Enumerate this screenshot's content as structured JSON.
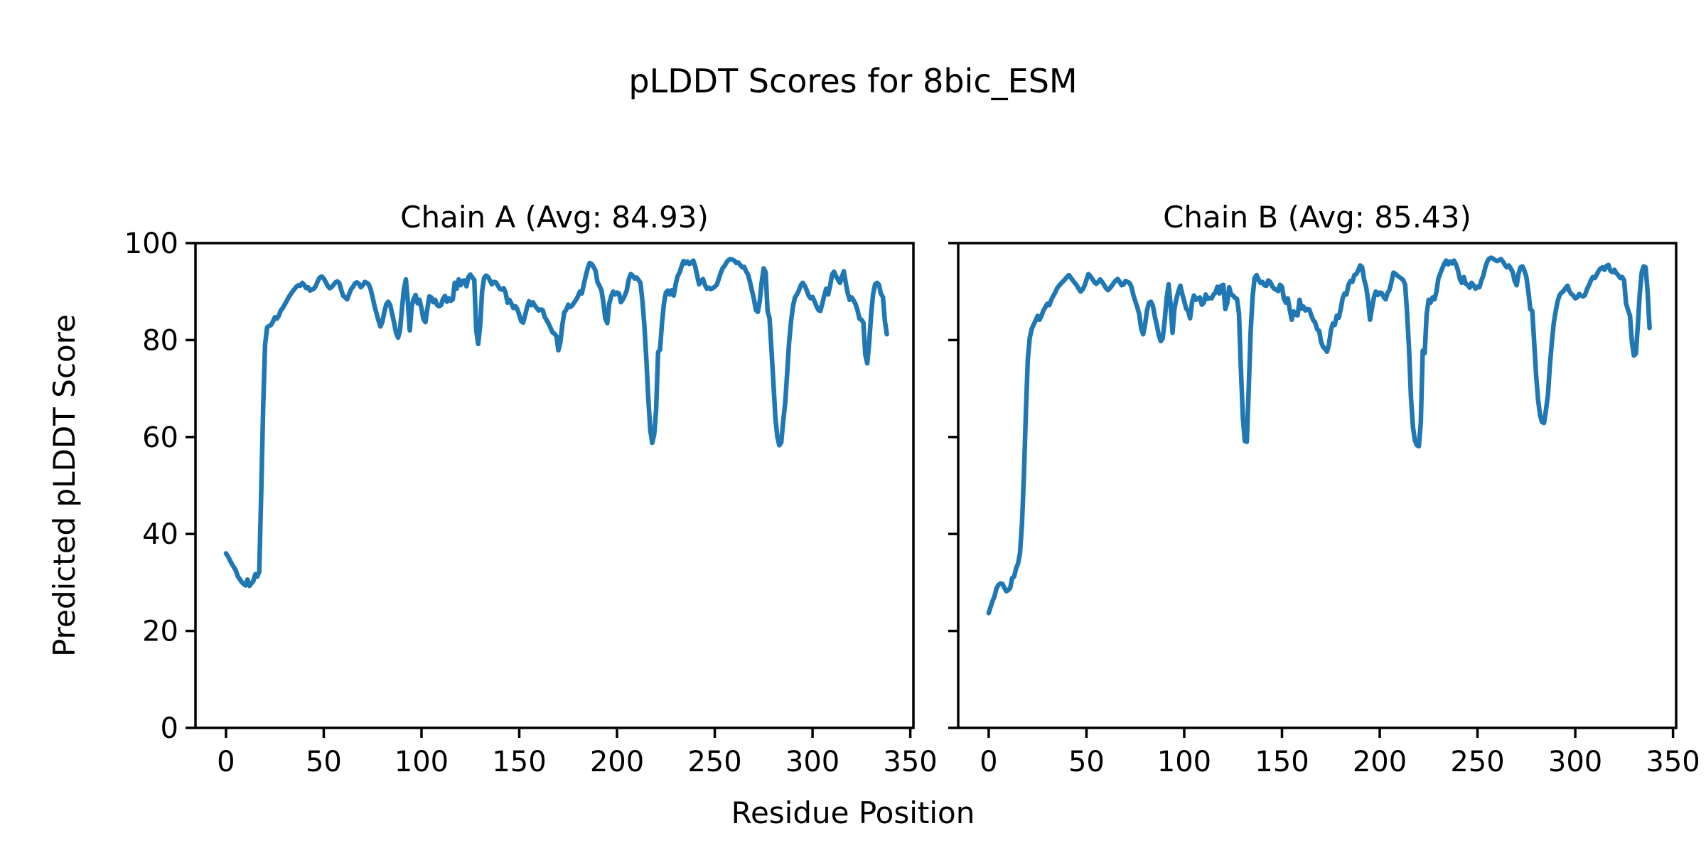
{
  "figure": {
    "title": "pLDDT Scores for 8bic_ESM",
    "xlabel": "Residue Position",
    "ylabel": "Predicted pLDDT Score",
    "background_color": "#ffffff",
    "text_color": "#000000"
  },
  "chart_data": {
    "type": "line",
    "title": "pLDDT Scores for 8bic_ESM",
    "xlabel": "Residue Position",
    "ylabel": "Predicted pLDDT Score",
    "line_color": "#1f77b4",
    "axis_color": "#000000",
    "grid": false,
    "legend": "none",
    "x_ticks": [
      0,
      50,
      100,
      150,
      200,
      250,
      300,
      350
    ],
    "y_ticks": [
      0,
      20,
      40,
      60,
      80,
      100
    ],
    "xlim": [
      -15.6,
      351.6
    ],
    "ylim": [
      0,
      100
    ],
    "x_start": 0,
    "x_step": 1,
    "subplots": [
      {
        "title": "Chain A (Avg: 84.93)",
        "series_name": "Chain A",
        "avg": 84.93,
        "values": [
          36,
          35.4,
          34.6,
          33.8,
          33.2,
          32.5,
          31.3,
          30.7,
          30.1,
          29.7,
          29.4,
          30.6,
          29.3,
          29.8,
          30.3,
          31.7,
          31.2,
          32.2,
          48,
          66,
          79,
          82.6,
          82.9,
          83.1,
          83.8,
          84.7,
          84.4,
          85,
          86.1,
          86.6,
          87.3,
          88,
          88.8,
          89.4,
          90,
          90.5,
          91,
          91.3,
          91.2,
          91.8,
          91.4,
          90.7,
          90.9,
          90.2,
          90.4,
          90.6,
          91.2,
          92.2,
          92.9,
          93.1,
          92.7,
          92,
          91.2,
          90.7,
          90.9,
          91.4,
          91.9,
          92.1,
          91.7,
          90.3,
          89.1,
          88.8,
          88.4,
          89.5,
          90.5,
          91,
          91.7,
          91.9,
          91.6,
          90.9,
          91.3,
          92,
          91.8,
          91.5,
          90.5,
          88.8,
          87,
          85.5,
          84,
          82.8,
          83.8,
          85.8,
          87.4,
          87.9,
          87.2,
          85.4,
          83.5,
          81.5,
          80.5,
          82,
          86.5,
          90.5,
          92.5,
          88,
          82,
          87,
          88.5,
          89.3,
          87.6,
          88.3,
          86.5,
          84.3,
          83.7,
          86.5,
          89,
          88.8,
          87.8,
          88.3,
          87.2,
          87,
          87.2,
          88.5,
          89.1,
          87.9,
          88.6,
          88.1,
          88.4,
          91.8,
          90.6,
          92.5,
          91.3,
          92.2,
          92.3,
          91.1,
          93,
          93.5,
          92.9,
          92.4,
          82,
          79.2,
          83,
          90,
          92.8,
          93.3,
          93,
          92.3,
          91.5,
          92,
          91.9,
          91.3,
          90.6,
          90.4,
          90.7,
          89.8,
          87.7,
          88.3,
          87.5,
          86.6,
          87,
          86.4,
          85.2,
          83.9,
          83.6,
          85.1,
          86.8,
          88,
          87.2,
          87.8,
          87.1,
          86.6,
          86.1,
          86.3,
          86.2,
          84.8,
          84.1,
          83.4,
          82.5,
          81.6,
          81.3,
          80.8,
          77.9,
          79.5,
          83,
          85.7,
          86.2,
          87.3,
          86.8,
          87.1,
          87.7,
          88.3,
          89,
          90,
          89.6,
          91.5,
          93.2,
          94.8,
          95.9,
          95.7,
          95.1,
          94.3,
          92,
          91.2,
          90.3,
          87.8,
          84.5,
          83.5,
          87.5,
          89,
          90,
          89.4,
          89.8,
          89.6,
          87.8,
          88.4,
          89.2,
          90.3,
          92.5,
          93.6,
          93.3,
          92.7,
          92.9,
          92.4,
          91.8,
          88,
          83,
          76,
          68,
          61.5,
          58.8,
          60.5,
          65.5,
          77.5,
          78,
          83.5,
          87.5,
          89.8,
          90.2,
          89.4,
          90.3,
          89.2,
          91.5,
          93.2,
          93.9,
          95.2,
          96.3,
          95.8,
          96.2,
          95.7,
          95.9,
          96.4,
          95.2,
          93.3,
          91.5,
          92.2,
          92.6,
          91.3,
          90.6,
          90.8,
          90.5,
          90.7,
          91,
          91.4,
          92.5,
          93.8,
          94.8,
          95.3,
          96,
          96.5,
          96.7,
          96.6,
          96.4,
          95.9,
          96,
          95.5,
          95,
          95.1,
          94.2,
          93.5,
          92,
          90.2,
          88.5,
          86.2,
          85.8,
          88,
          92,
          94.8,
          94,
          86,
          84.5,
          78,
          71,
          64,
          60,
          58.3,
          58.9,
          63.3,
          67,
          73,
          79.5,
          83.8,
          87,
          88.8,
          89.4,
          90.2,
          91.3,
          91.8,
          91.2,
          90.3,
          89.2,
          88.6,
          88.9,
          88,
          87,
          86.2,
          86,
          87.5,
          89.2,
          90.6,
          89.4,
          91.2,
          93.5,
          94.1,
          93.2,
          92.5,
          91.8,
          93,
          94.2,
          91.8,
          89.7,
          88.3,
          88.8,
          88.2,
          87.4,
          86.2,
          84.4,
          84.2,
          83.6,
          77,
          75.2,
          79.5,
          85.5,
          89.5,
          91.5,
          91.8,
          91.4,
          89.5,
          88.9,
          84,
          81.2
        ]
      },
      {
        "title": "Chain B (Avg: 85.43)",
        "series_name": "Chain B",
        "avg": 85.43,
        "values": [
          23.7,
          25,
          26.2,
          27.2,
          28.8,
          29.5,
          29.8,
          29.7,
          28.9,
          28.2,
          28.4,
          28.9,
          30.9,
          31.2,
          32.9,
          33.9,
          36,
          42,
          52,
          65,
          76,
          80.5,
          82.3,
          83.2,
          84,
          85,
          84.2,
          85,
          86.1,
          86.8,
          87.5,
          87.2,
          88.3,
          89.1,
          89.8,
          90.7,
          91.2,
          91.7,
          92.1,
          92.5,
          93,
          93.4,
          92.9,
          92.3,
          91.8,
          91.3,
          90.6,
          90,
          90.4,
          91.2,
          92.4,
          93.6,
          93.2,
          92.6,
          92,
          91.6,
          92,
          92.5,
          92,
          91.4,
          90.7,
          90.3,
          90.7,
          91.2,
          91.8,
          92.3,
          92.6,
          92,
          91.3,
          91.5,
          92.2,
          92,
          91.8,
          91,
          89.3,
          88,
          86.8,
          85.3,
          82.3,
          81.2,
          83.3,
          86.2,
          87.7,
          87.9,
          87,
          84.8,
          83,
          81,
          79.8,
          80.4,
          84,
          88.5,
          91.5,
          87.5,
          81.5,
          86.5,
          88.5,
          90,
          91.2,
          89.5,
          88,
          86.5,
          86,
          84.5,
          87.8,
          89.2,
          88.3,
          88.6,
          88.8,
          87.3,
          87.7,
          89.4,
          88.5,
          88.7,
          88.6,
          89.4,
          89.8,
          91,
          89.6,
          91.2,
          91.4,
          86.4,
          87.6,
          90.9,
          89.4,
          89.2,
          88.7,
          88.5,
          85.5,
          74,
          64,
          59.2,
          59,
          70,
          82,
          89,
          92.8,
          93.4,
          92.5,
          91.8,
          92,
          91.3,
          91.2,
          92.3,
          92,
          91.1,
          90.6,
          90.4,
          90.1,
          91.4,
          91,
          88.5,
          87.7,
          88.6,
          86.2,
          84.2,
          85.9,
          85.2,
          85.1,
          88.3,
          86.5,
          86.9,
          86.1,
          86.4,
          86.3,
          85.1,
          84.1,
          83.6,
          82.2,
          81.9,
          79.6,
          78.6,
          78.2,
          77.6,
          79,
          82,
          83.4,
          83.1,
          85,
          84.6,
          86.3,
          88.6,
          89.6,
          89.4,
          91.4,
          92.2,
          92,
          93.4,
          93.6,
          94.4,
          95.4,
          95,
          92.5,
          91,
          88.4,
          84.2,
          86.5,
          88.8,
          90,
          89.3,
          89.8,
          89.7,
          88.9,
          88.4,
          89.7,
          90.4,
          92,
          93.9,
          93.7,
          93.3,
          93,
          92.7,
          92.4,
          91.4,
          85.5,
          78,
          68,
          62,
          59.3,
          58.3,
          58.1,
          63,
          77.8,
          77.3,
          85.3,
          88.3,
          87.7,
          88.8,
          88.4,
          90,
          92.7,
          93.8,
          94.8,
          95.8,
          96.4,
          95.6,
          96.2,
          95.8,
          96.4,
          95.6,
          94.4,
          92.6,
          91.8,
          93,
          91.6,
          91.4,
          90.8,
          91.8,
          91.3,
          90.6,
          91,
          90.9,
          92.3,
          93.3,
          95,
          96.2,
          96.8,
          97,
          96.8,
          96.5,
          96.3,
          96.5,
          96.7,
          96.2,
          95.5,
          95,
          95.4,
          94.8,
          94,
          92.2,
          91.3,
          93.7,
          95,
          95.2,
          94.3,
          93,
          90,
          86.4,
          86,
          79.5,
          72.6,
          67.6,
          64.5,
          63.1,
          62.9,
          65.5,
          68.6,
          74.6,
          79.5,
          83.5,
          86,
          88,
          89.3,
          89.8,
          90.1,
          90.7,
          91.2,
          90.1,
          89.5,
          89.2,
          88.6,
          88.8,
          89.5,
          89.2,
          89,
          89.3,
          90.5,
          91.3,
          92.3,
          93,
          92.8,
          93.5,
          94.3,
          94.8,
          95,
          94.5,
          95.3,
          95.5,
          94.3,
          94,
          94.5,
          93.8,
          93.4,
          92.8,
          93,
          92.3,
          87.5,
          86.2,
          85,
          79.5,
          76.8,
          77.2,
          83,
          89.5,
          94,
          95.2,
          95,
          90,
          82.5
        ]
      }
    ]
  }
}
